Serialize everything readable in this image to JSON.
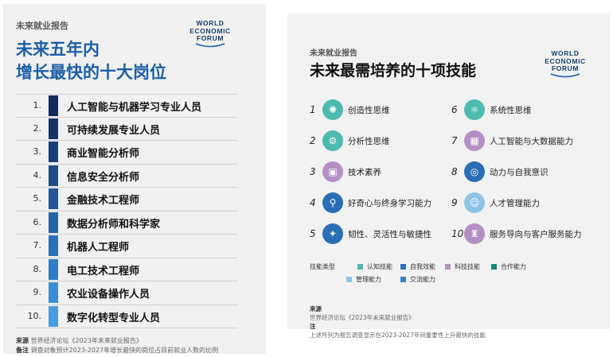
{
  "left": {
    "kicker": "未来就业报告",
    "title_line1": "未来五年内",
    "title_line2": "增长最快的十大岗位",
    "logo": [
      "WORLD",
      "ECONOMIC",
      "FORUM"
    ],
    "jobs": [
      {
        "num": "1.",
        "label": "人工智能与机器学习专业人员",
        "color": "#132a5c"
      },
      {
        "num": "2.",
        "label": "可持续发展专业人员",
        "color": "#173468"
      },
      {
        "num": "3.",
        "label": "商业智能分析师",
        "color": "#1b3f77"
      },
      {
        "num": "4.",
        "label": "信息安全分析师",
        "color": "#1f4b86"
      },
      {
        "num": "5.",
        "label": "金融技术工程师",
        "color": "#235796"
      },
      {
        "num": "6.",
        "label": "数据分析师和科学家",
        "color": "#2663a6"
      },
      {
        "num": "7.",
        "label": "机器人工程师",
        "color": "#2a70b6"
      },
      {
        "num": "8.",
        "label": "电工技术工程师",
        "color": "#2f7dc5"
      },
      {
        "num": "9.",
        "label": "农业设备操作人员",
        "color": "#3b8dd3"
      },
      {
        "num": "10.",
        "label": "数字化转型专业人员",
        "color": "#4a9cdc"
      }
    ],
    "source_label": "来源",
    "source_text": "世界经济论坛《2023年未来就业报告》",
    "note_label": "备注",
    "note_text": "调查对象预计2023-2027年增长最快的岗位占目前就业人数的比例"
  },
  "right": {
    "kicker": "未来就业报告",
    "title": "未来最需培养的十项技能",
    "logo": [
      "WORLD",
      "ECONOMIC",
      "FORUM"
    ],
    "skills": [
      {
        "num": "1",
        "label": "创造性思维",
        "icon": "lightbulb-icon",
        "glyph": "✺",
        "color": "#4dbab0"
      },
      {
        "num": "2",
        "label": "分析性思维",
        "icon": "brain-gear-icon",
        "glyph": "⚙",
        "color": "#4dbab0"
      },
      {
        "num": "3",
        "label": "技术素养",
        "icon": "chip-icon",
        "glyph": "▣",
        "color": "#b48fc4"
      },
      {
        "num": "4",
        "label": "好奇心与终身学习能力",
        "icon": "magnifier-icon",
        "glyph": "⚲",
        "color": "#2a6fb5"
      },
      {
        "num": "5",
        "label": "韧性、灵活性与敏捷性",
        "icon": "resilience-icon",
        "glyph": "✦",
        "color": "#2a6fb5"
      },
      {
        "num": "6",
        "label": "系统性思维",
        "icon": "network-icon",
        "glyph": "⚛",
        "color": "#4dbab0"
      },
      {
        "num": "7",
        "label": "人工智能与大数据能力",
        "icon": "ai-chip-icon",
        "glyph": "▦",
        "color": "#b48fc4"
      },
      {
        "num": "8",
        "label": "动力与自我意识",
        "icon": "target-icon",
        "glyph": "◎",
        "color": "#2a6fb5"
      },
      {
        "num": "9",
        "label": "人才管理能力",
        "icon": "people-icon",
        "glyph": "☺",
        "color": "#8ec3e6"
      },
      {
        "num": "10",
        "label": "服务导向与客户服务能力",
        "icon": "service-icon",
        "glyph": "♜",
        "color": "#b48fc4"
      }
    ],
    "legend_title": "技能类型",
    "legend": [
      {
        "label": "认知技能",
        "color": "#4dbab0"
      },
      {
        "label": "自我效能",
        "color": "#2a6fb5"
      },
      {
        "label": "科技技能",
        "color": "#b48fc4"
      },
      {
        "label": "合作能力",
        "color": "#0f8a7a"
      },
      {
        "label": "管理能力",
        "color": "#8ec3e6"
      },
      {
        "label": "交流能力",
        "color": "#3b7fc4"
      }
    ],
    "source_label": "来源",
    "source_text": "世界经济论坛《2023年未来就业报告》",
    "note_label": "注",
    "note_text": "上述所列为报告调查显示在2023-2027年间重要性上升最快的技能"
  }
}
